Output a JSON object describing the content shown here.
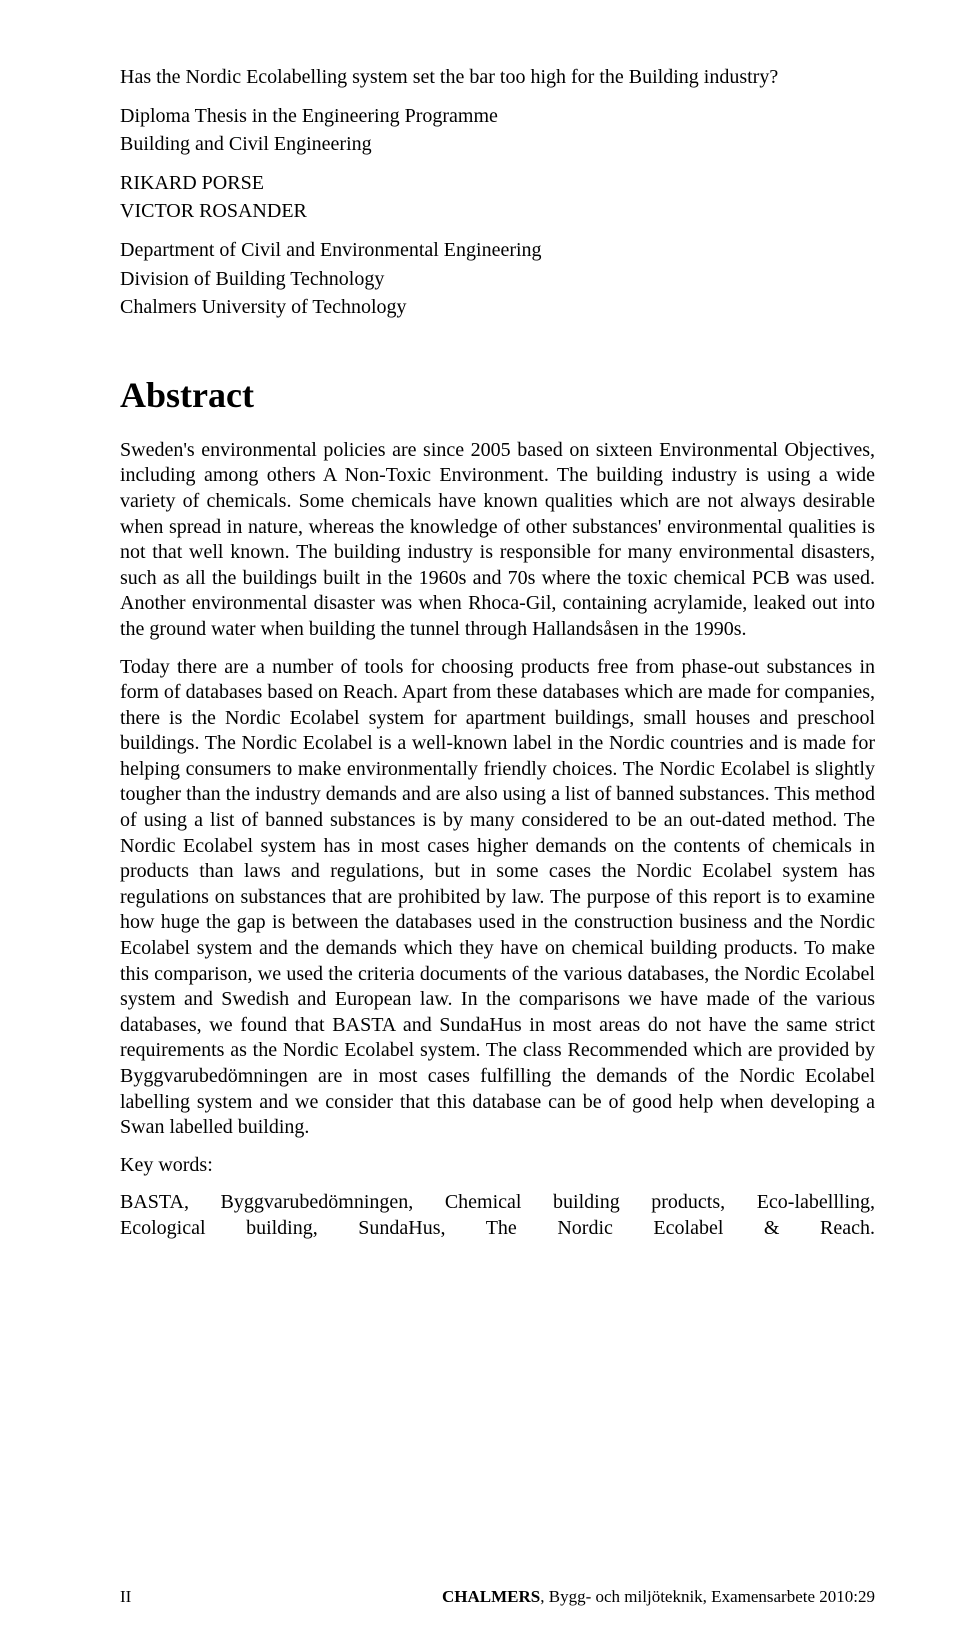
{
  "header": {
    "title": "Has the Nordic Ecolabelling system set the bar too high for the Building industry?",
    "thesis_line": "Diploma Thesis in the Engineering Programme",
    "programme": "Building and Civil Engineering",
    "author1": "RIKARD PORSE",
    "author2": "VICTOR ROSANDER",
    "department": "Department of Civil and Environmental Engineering",
    "division": "Division of Building Technology",
    "university": "Chalmers University of Technology"
  },
  "abstract": {
    "heading": "Abstract",
    "p1": "Sweden's environmental policies are since 2005 based on sixteen Environmental Objectives, including among others A Non-Toxic Environment. The building industry is using a wide variety of chemicals. Some chemicals have known qualities which are not always desirable when spread in nature, whereas the knowledge of other substances' environmental qualities is not that well known. The building industry is responsible for many environmental disasters, such as all the buildings built in the 1960s and 70s where the toxic chemical PCB was used. Another environmental disaster was when Rhoca-Gil, containing acrylamide, leaked out into the ground water when building the tunnel through Hallandsåsen in the 1990s.",
    "p2": "Today there are a number of tools for choosing products free from phase-out substances in form of databases based on Reach. Apart from these databases which are made for companies, there is the Nordic Ecolabel system for apartment buildings, small houses and preschool buildings. The Nordic Ecolabel is a well-known label in the Nordic countries and is made for helping consumers to make environmentally friendly choices. The Nordic Ecolabel is slightly tougher than the industry demands and are also using a list of banned substances. This method of using a list of banned substances is by many considered to be an out-dated method. The Nordic Ecolabel system has in most cases higher demands on the contents of chemicals in products than laws and regulations, but in some cases the Nordic Ecolabel system has regulations on substances that are prohibited by law. The purpose of this report is to examine how huge the gap is between the databases used in the construction business and the Nordic Ecolabel system and the demands which they have on chemical building products. To make this comparison, we used the criteria documents of the various databases, the Nordic Ecolabel system and Swedish and European law. In the comparisons we have made of the various databases, we found that BASTA and SundaHus in most areas do not have the same strict requirements as the Nordic Ecolabel system. The class Recommended which are provided by Byggvarubedömningen are in most cases fulfilling the demands of the Nordic Ecolabel labelling system and we consider that this database can be of good help when developing a Swan labelled building.",
    "keywords_label": "Key words:",
    "keywords_line1": "BASTA, Byggvarubedömningen, Chemical building products, Eco-labellling,",
    "keywords_line2": "Ecological building, SundaHus, The Nordic Ecolabel & Reach."
  },
  "footer": {
    "page_num": "II",
    "publisher_bold": "CHALMERS",
    "publisher_rest": ", Bygg- och miljöteknik, Examensarbete 2010:29"
  }
}
